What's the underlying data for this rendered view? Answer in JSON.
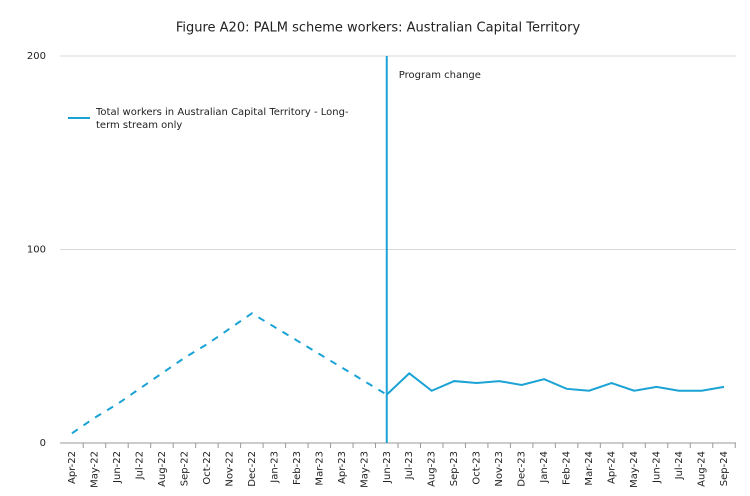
{
  "chart_data": {
    "type": "line",
    "title": "Figure A20: PALM scheme workers: Australian Capital Territory",
    "categories": [
      "Apr-22",
      "May-22",
      "Jun-22",
      "Jul-22",
      "Aug-22",
      "Sep-22",
      "Oct-22",
      "Nov-22",
      "Dec-22",
      "Jan-23",
      "Feb-23",
      "Mar-23",
      "Apr-23",
      "May-23",
      "Jun-23",
      "Jul-23",
      "Aug-23",
      "Sep-23",
      "Oct-23",
      "Nov-23",
      "Dec-23",
      "Jan-24",
      "Feb-24",
      "Mar-24",
      "Apr-24",
      "May-24",
      "Jun-24",
      "Jul-24",
      "Aug-24",
      "Sep-24"
    ],
    "series": [
      {
        "color": "#1aa3d4",
        "dashed": true,
        "values": [
          5,
          13,
          20,
          28,
          36,
          44,
          51,
          59,
          67,
          60,
          53,
          46,
          39,
          32,
          25,
          null,
          null,
          null,
          null,
          null,
          null,
          null,
          null,
          null,
          null,
          null,
          null,
          null,
          null,
          null
        ]
      },
      {
        "name": "Total workers in Australian Capital Territory  - Long-term stream only",
        "color": "#1aa3d4",
        "values": [
          null,
          null,
          null,
          null,
          null,
          null,
          null,
          null,
          null,
          null,
          null,
          null,
          null,
          null,
          25,
          36,
          27,
          32,
          31,
          32,
          30,
          33,
          28,
          27,
          31,
          27,
          29,
          27,
          27,
          29
        ]
      }
    ],
    "annotations": [
      {
        "text": "Program change",
        "x": "Jun-23"
      }
    ],
    "ylim": [
      0,
      200
    ],
    "yticks": [
      0,
      100,
      200
    ],
    "grid": true,
    "legend": "top-left"
  }
}
